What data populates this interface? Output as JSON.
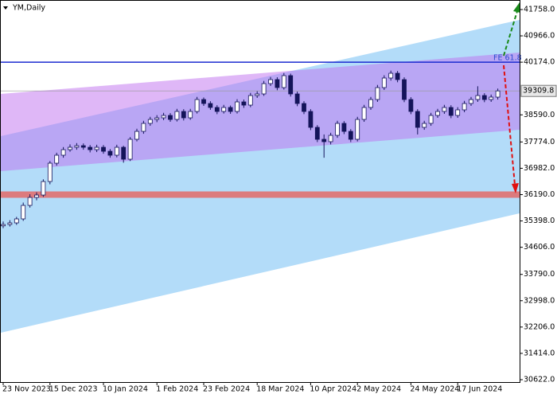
{
  "chart_data": {
    "type": "candlestick",
    "title": "YM,Daily",
    "categories": [
      "23 Nov 2023",
      null,
      null,
      null,
      null,
      null,
      null,
      "15 Dec 2023",
      null,
      null,
      null,
      null,
      null,
      null,
      null,
      "10 Jan 2024",
      null,
      null,
      null,
      null,
      null,
      null,
      null,
      "1 Feb 2024",
      null,
      null,
      null,
      null,
      null,
      null,
      "23 Feb 2024",
      null,
      null,
      null,
      null,
      null,
      null,
      null,
      "18 Mar 2024",
      null,
      null,
      null,
      null,
      null,
      null,
      null,
      "10 Apr 2024",
      null,
      null,
      null,
      null,
      null,
      null,
      "2 May 2024",
      null,
      null,
      null,
      null,
      null,
      null,
      null,
      "24 May 2024",
      null,
      null,
      null,
      null,
      null,
      null,
      "17 Jun 2024",
      null,
      null,
      null,
      null,
      null,
      null
    ],
    "ohlc": [
      [
        35250,
        35380,
        35180,
        35291
      ],
      [
        35291,
        35420,
        35230,
        35339
      ],
      [
        35339,
        35520,
        35280,
        35459
      ],
      [
        35459,
        35950,
        35400,
        35866
      ],
      [
        35866,
        36200,
        35800,
        36105
      ],
      [
        36105,
        36260,
        36020,
        36177
      ],
      [
        36177,
        36650,
        36120,
        36584
      ],
      [
        36584,
        37200,
        36500,
        37135
      ],
      [
        37135,
        37450,
        37060,
        37375
      ],
      [
        37375,
        37620,
        37300,
        37542
      ],
      [
        37542,
        37700,
        37480,
        37614
      ],
      [
        37614,
        37740,
        37540,
        37662
      ],
      [
        37662,
        37730,
        37540,
        37614
      ],
      [
        37614,
        37680,
        37460,
        37542
      ],
      [
        37542,
        37690,
        37470,
        37614
      ],
      [
        37614,
        37680,
        37420,
        37494
      ],
      [
        37494,
        37560,
        37300,
        37375
      ],
      [
        37375,
        37690,
        37310,
        37614
      ],
      [
        37614,
        37660,
        37150,
        37255
      ],
      [
        37255,
        37920,
        37200,
        37854
      ],
      [
        37854,
        38170,
        37790,
        38093
      ],
      [
        38093,
        38410,
        38020,
        38333
      ],
      [
        38333,
        38530,
        38260,
        38452
      ],
      [
        38452,
        38580,
        38370,
        38500
      ],
      [
        38500,
        38650,
        38430,
        38572
      ],
      [
        38572,
        38640,
        38380,
        38452
      ],
      [
        38452,
        38770,
        38390,
        38692
      ],
      [
        38692,
        38760,
        38420,
        38500
      ],
      [
        38500,
        38770,
        38440,
        38692
      ],
      [
        38692,
        39130,
        38630,
        39051
      ],
      [
        39051,
        39110,
        38860,
        38931
      ],
      [
        38931,
        39000,
        38740,
        38812
      ],
      [
        38812,
        38880,
        38610,
        38692
      ],
      [
        38692,
        38890,
        38630,
        38812
      ],
      [
        38812,
        38870,
        38620,
        38692
      ],
      [
        38692,
        39060,
        38630,
        38979
      ],
      [
        38979,
        39050,
        38800,
        38883
      ],
      [
        38883,
        39250,
        38820,
        39171
      ],
      [
        39171,
        39300,
        39100,
        39219
      ],
      [
        39219,
        39610,
        39160,
        39530
      ],
      [
        39530,
        39730,
        39460,
        39650
      ],
      [
        39650,
        39720,
        39330,
        39410
      ],
      [
        39410,
        39850,
        39350,
        39770
      ],
      [
        39770,
        39830,
        39140,
        39219
      ],
      [
        39219,
        39290,
        38850,
        38931
      ],
      [
        38931,
        39000,
        38610,
        38692
      ],
      [
        38692,
        38760,
        38130,
        38213
      ],
      [
        38213,
        38280,
        37770,
        37854
      ],
      [
        37854,
        38000,
        37300,
        37782
      ],
      [
        37782,
        38050,
        37700,
        37973
      ],
      [
        37973,
        38410,
        37900,
        38333
      ],
      [
        38333,
        38400,
        38010,
        38093
      ],
      [
        38093,
        38160,
        37770,
        37854
      ],
      [
        37854,
        38530,
        37790,
        38452
      ],
      [
        38452,
        38890,
        38380,
        38812
      ],
      [
        38812,
        39130,
        38740,
        39051
      ],
      [
        39051,
        39490,
        38980,
        39410
      ],
      [
        39410,
        39780,
        39340,
        39698
      ],
      [
        39698,
        39920,
        39620,
        39841
      ],
      [
        39841,
        39910,
        39570,
        39650
      ],
      [
        39650,
        39720,
        38970,
        39051
      ],
      [
        39051,
        39120,
        38610,
        38692
      ],
      [
        38692,
        38760,
        38000,
        38213
      ],
      [
        38213,
        38410,
        38140,
        38333
      ],
      [
        38333,
        38650,
        38260,
        38572
      ],
      [
        38572,
        38770,
        38500,
        38692
      ],
      [
        38692,
        38890,
        38620,
        38812
      ],
      [
        38812,
        38880,
        38490,
        38572
      ],
      [
        38572,
        38820,
        38500,
        38740
      ],
      [
        38740,
        39010,
        38670,
        38931
      ],
      [
        38931,
        39130,
        38860,
        39051
      ],
      [
        39051,
        39450,
        38980,
        39171
      ],
      [
        39171,
        39240,
        38970,
        39051
      ],
      [
        39051,
        39200,
        38980,
        39123
      ],
      [
        39123,
        39380,
        39050,
        39309.8
      ]
    ],
    "up_color": "#ffffff",
    "down_color": "#14145a",
    "outline_color": "#14145a",
    "ylim": [
      30550,
      41997
    ],
    "yticks": [
      {
        "value": 41758,
        "label": "41758.0"
      },
      {
        "value": 40966,
        "label": "40966.0"
      },
      {
        "value": 40174,
        "label": "40174.0"
      },
      {
        "value": 38590,
        "label": "38590.0"
      },
      {
        "value": 37774,
        "label": "37774.0"
      },
      {
        "value": 36982,
        "label": "36982.0"
      },
      {
        "value": 36190,
        "label": "36190.0"
      },
      {
        "value": 35398,
        "label": "35398.0"
      },
      {
        "value": 34606,
        "label": "34606.0"
      },
      {
        "value": 33790,
        "label": "33790.0"
      },
      {
        "value": 32998,
        "label": "32998.0"
      },
      {
        "value": 32206,
        "label": "32206.0"
      },
      {
        "value": 31414,
        "label": "31414.0"
      },
      {
        "value": 30622,
        "label": "30622.0"
      }
    ],
    "current_price": 39309.8,
    "fe_level": 40174,
    "fe_label": "FE 61.8",
    "support_level": 36190
  }
}
